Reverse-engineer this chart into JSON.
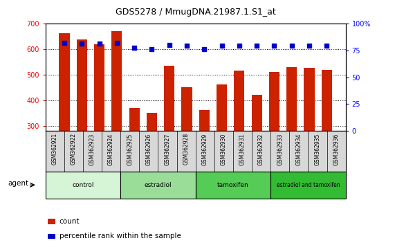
{
  "title": "GDS5278 / MmugDNA.21987.1.S1_at",
  "samples": [
    "GSM362921",
    "GSM362922",
    "GSM362923",
    "GSM362924",
    "GSM362925",
    "GSM362926",
    "GSM362927",
    "GSM362928",
    "GSM362929",
    "GSM362930",
    "GSM362931",
    "GSM362932",
    "GSM362933",
    "GSM362934",
    "GSM362935",
    "GSM362936"
  ],
  "counts": [
    660,
    638,
    618,
    668,
    370,
    352,
    535,
    452,
    363,
    462,
    516,
    422,
    510,
    528,
    527,
    518
  ],
  "percentiles": [
    82,
    81,
    81,
    82,
    77,
    76,
    80,
    79,
    76,
    79,
    79,
    79,
    79,
    79,
    79,
    79
  ],
  "groups": [
    {
      "label": "control",
      "start": 0,
      "end": 4,
      "color": "#d6f5d6"
    },
    {
      "label": "estradiol",
      "start": 4,
      "end": 8,
      "color": "#99dd99"
    },
    {
      "label": "tamoxifen",
      "start": 8,
      "end": 12,
      "color": "#55cc55"
    },
    {
      "label": "estradiol and tamoxifen",
      "start": 12,
      "end": 16,
      "color": "#33bb33"
    }
  ],
  "ylim_left": [
    280,
    700
  ],
  "ylim_right": [
    0,
    100
  ],
  "yticks_left": [
    300,
    400,
    500,
    600,
    700
  ],
  "yticks_right": [
    0,
    25,
    50,
    75,
    100
  ],
  "bar_color": "#cc2200",
  "dot_color": "#0000cc",
  "background_color": "#ffffff",
  "grid_color": "#000000",
  "label_count": "count",
  "label_percentile": "percentile rank within the sample",
  "agent_label": "agent",
  "plot_bg": "#ffffff",
  "xtick_bg": "#d8d8d8"
}
